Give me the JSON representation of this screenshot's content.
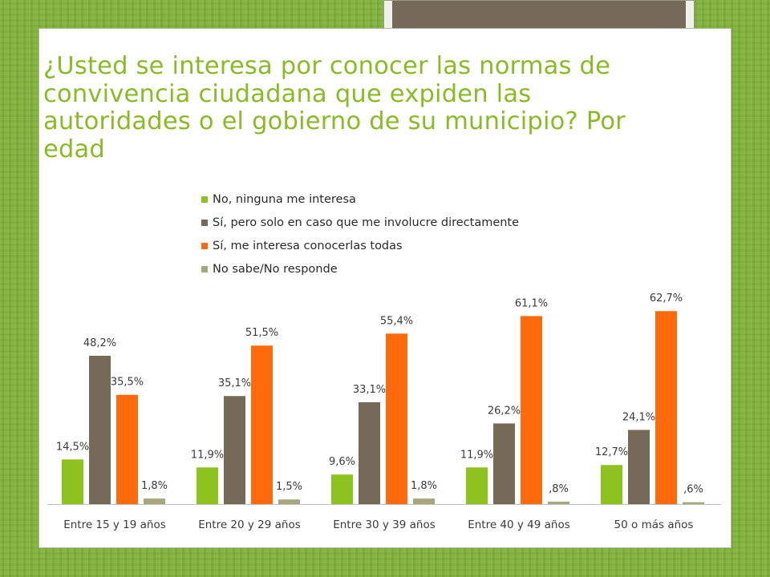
{
  "slide": {
    "title": "¿Usted se interesa por conocer las normas de convivencia ciudadana que expiden las autoridades o el gobierno de su municipio? Por edad"
  },
  "colors": {
    "background": "#7fb23a",
    "title": "#89bb25",
    "deco_frame": "#756a58"
  },
  "chart_data": {
    "type": "bar",
    "categories": [
      "Entre 15 y 19 años",
      "Entre 20 y 29 años",
      "Entre 30 y 39 años",
      "Entre 40 y 49 años",
      "50 o más años"
    ],
    "series": [
      {
        "name": "No, ninguna me interesa",
        "color": "#8dc21f",
        "values": [
          14.5,
          11.9,
          9.6,
          11.9,
          12.7
        ],
        "labels": [
          "14,5%",
          "11,9%",
          "9,6%",
          "11,9%",
          "12,7%"
        ]
      },
      {
        "name": "Sí, pero solo en caso que me involucre directamente",
        "color": "#756a58",
        "values": [
          48.2,
          35.1,
          33.1,
          26.2,
          24.1
        ],
        "labels": [
          "48,2%",
          "35,1%",
          "33,1%",
          "26,2%",
          "24,1%"
        ]
      },
      {
        "name": "Sí, me interesa conocerlas todas",
        "color": "#ff6a0d",
        "values": [
          35.5,
          51.5,
          55.4,
          61.1,
          62.7
        ],
        "labels": [
          "35,5%",
          "51,5%",
          "55,4%",
          "61,1%",
          "62,7%"
        ]
      },
      {
        "name": "No sabe/No responde",
        "color": "#a9a77f",
        "values": [
          1.8,
          1.5,
          1.8,
          0.8,
          0.6
        ],
        "labels": [
          "1,8%",
          "1,5%",
          "1,8%",
          ",8%",
          ",6%"
        ]
      }
    ],
    "legend_position": "top",
    "grid": false,
    "ylim": [
      0,
      70
    ]
  }
}
